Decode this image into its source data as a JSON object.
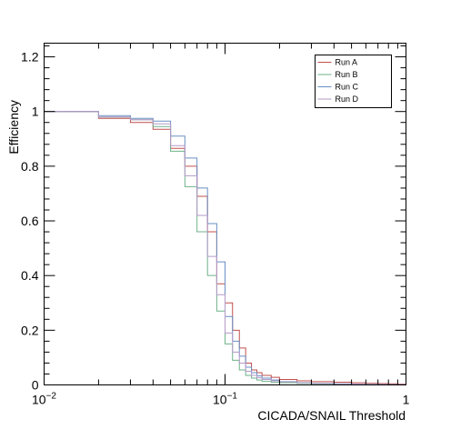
{
  "chart_data": {
    "type": "line",
    "step": true,
    "xlabel": "CICADA/SNAIL Threshold",
    "ylabel": "Efficiency",
    "x_scale": "log",
    "xlim": [
      0.01,
      1
    ],
    "ylim": [
      0,
      1.25
    ],
    "x_ticks": [
      {
        "value": 0.01,
        "base": "10",
        "exp": "−2"
      },
      {
        "value": 0.1,
        "base": "10",
        "exp": "−1"
      },
      {
        "value": 1,
        "base": "1",
        "exp": ""
      }
    ],
    "y_ticks": [
      {
        "value": 0,
        "label": "0"
      },
      {
        "value": 0.2,
        "label": "0.2"
      },
      {
        "value": 0.4,
        "label": "0.4"
      },
      {
        "value": 0.6,
        "label": "0.6"
      },
      {
        "value": 0.8,
        "label": "0.8"
      },
      {
        "value": 1,
        "label": "1"
      },
      {
        "value": 1.2,
        "label": "1.2"
      }
    ],
    "bin_edges": [
      0.01,
      0.02,
      0.03,
      0.04,
      0.05,
      0.06,
      0.07,
      0.08,
      0.09,
      0.1,
      0.11,
      0.12,
      0.13,
      0.14,
      0.15,
      0.16,
      0.18,
      0.2,
      0.25,
      0.3,
      0.4,
      0.5,
      0.6,
      0.7,
      0.8,
      0.9,
      1.0
    ],
    "legend": {
      "position": "top-right"
    },
    "grid": false,
    "series": [
      {
        "name": "Run A",
        "color": "#c0504d",
        "values": [
          1.0,
          0.975,
          0.96,
          0.935,
          0.865,
          0.8,
          0.69,
          0.56,
          0.37,
          0.3,
          0.2,
          0.135,
          0.08,
          0.055,
          0.045,
          0.035,
          0.028,
          0.02,
          0.015,
          0.012,
          0.01,
          0.008,
          0.006,
          0.005,
          0.004,
          0.003
        ]
      },
      {
        "name": "Run B",
        "color": "#6fb28a",
        "values": [
          1.0,
          0.98,
          0.97,
          0.945,
          0.855,
          0.725,
          0.56,
          0.4,
          0.27,
          0.15,
          0.09,
          0.055,
          0.035,
          0.025,
          0.018,
          0.013,
          0.01,
          0.008,
          0.006,
          0.004,
          0.003,
          0.002,
          0.002,
          0.001,
          0.001,
          0.0
        ]
      },
      {
        "name": "Run C",
        "color": "#6a8fc4",
        "values": [
          1.0,
          0.985,
          0.975,
          0.965,
          0.91,
          0.83,
          0.72,
          0.59,
          0.45,
          0.25,
          0.16,
          0.105,
          0.065,
          0.045,
          0.033,
          0.025,
          0.018,
          0.012,
          0.008,
          0.006,
          0.004,
          0.003,
          0.002,
          0.002,
          0.001,
          0.001
        ]
      },
      {
        "name": "Run D",
        "color": "#b39ac8",
        "values": [
          1.0,
          0.98,
          0.97,
          0.955,
          0.875,
          0.765,
          0.62,
          0.47,
          0.33,
          0.19,
          0.12,
          0.08,
          0.05,
          0.035,
          0.026,
          0.02,
          0.015,
          0.011,
          0.008,
          0.006,
          0.004,
          0.003,
          0.002,
          0.002,
          0.001,
          0.001
        ]
      }
    ]
  }
}
